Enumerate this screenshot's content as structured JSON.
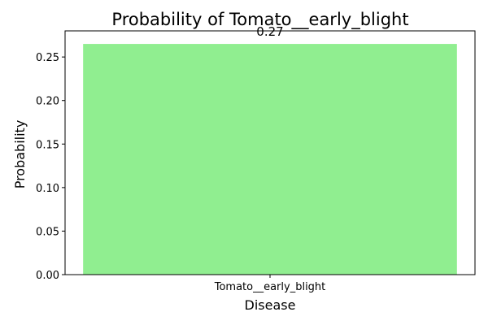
{
  "chart_data": {
    "type": "bar",
    "title": "Probability of Tomato__early_blight",
    "xlabel": "Disease",
    "ylabel": "Probability",
    "categories": [
      "Tomato__early_blight"
    ],
    "values": [
      0.265
    ],
    "data_labels": [
      "0.27"
    ],
    "ylim": [
      0,
      0.28
    ],
    "yticks": [
      "0.00",
      "0.05",
      "0.10",
      "0.15",
      "0.20",
      "0.25"
    ],
    "grid": false,
    "legend": "none",
    "bar_color": "#90ee90"
  }
}
